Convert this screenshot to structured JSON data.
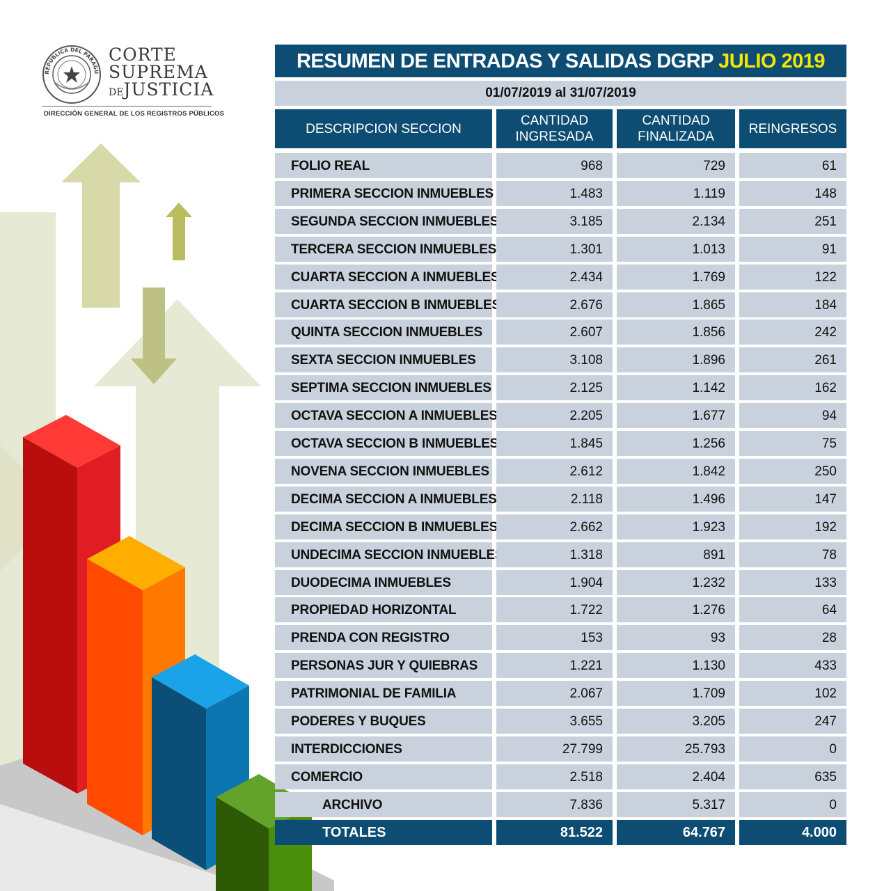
{
  "header": {
    "org_line1": "Corte",
    "org_line2": "Suprema",
    "org_line3_prefix": "de",
    "org_line3": "Justicia",
    "org_subtitle": "DIRECCIÓN GENERAL DE LOS REGISTROS PÚBLICOS",
    "seal_text": "REPÚBLICA DEL PARAGUAY"
  },
  "report": {
    "title": "RESUMEN DE ENTRADAS Y SALIDAS DGRP",
    "title_highlight": "JULIO 2019",
    "date_range": "01/07/2019 al 31/07/2019",
    "columns": {
      "description": "DESCRIPCION SECCION",
      "ingresada_1": "CANTIDAD",
      "ingresada_2": "INGRESADA",
      "finalizada_1": "CANTIDAD",
      "finalizada_2": "FINALIZADA",
      "reingresos": "REINGRESOS"
    },
    "rows": [
      {
        "name": "FOLIO REAL",
        "ingresada": "968",
        "finalizada": "729",
        "reingresos": "61"
      },
      {
        "name": "PRIMERA SECCION INMUEBLES",
        "ingresada": "1.483",
        "finalizada": "1.119",
        "reingresos": "148"
      },
      {
        "name": "SEGUNDA SECCION INMUEBLES",
        "ingresada": "3.185",
        "finalizada": "2.134",
        "reingresos": "251"
      },
      {
        "name": "TERCERA SECCION INMUEBLES",
        "ingresada": "1.301",
        "finalizada": "1.013",
        "reingresos": "91"
      },
      {
        "name": "CUARTA SECCION A INMUEBLES",
        "ingresada": "2.434",
        "finalizada": "1.769",
        "reingresos": "122"
      },
      {
        "name": "CUARTA SECCION B INMUEBLES",
        "ingresada": "2.676",
        "finalizada": "1.865",
        "reingresos": "184"
      },
      {
        "name": "QUINTA SECCION INMUEBLES",
        "ingresada": "2.607",
        "finalizada": "1.856",
        "reingresos": "242"
      },
      {
        "name": "SEXTA SECCION INMUEBLES",
        "ingresada": "3.108",
        "finalizada": "1.896",
        "reingresos": "261"
      },
      {
        "name": "SEPTIMA SECCION INMUEBLES",
        "ingresada": "2.125",
        "finalizada": "1.142",
        "reingresos": "162"
      },
      {
        "name": "OCTAVA SECCION A INMUEBLES",
        "ingresada": "2.205",
        "finalizada": "1.677",
        "reingresos": "94"
      },
      {
        "name": "OCTAVA SECCION B INMUEBLES",
        "ingresada": "1.845",
        "finalizada": "1.256",
        "reingresos": "75"
      },
      {
        "name": "NOVENA SECCION INMUEBLES",
        "ingresada": "2.612",
        "finalizada": "1.842",
        "reingresos": "250"
      },
      {
        "name": "DECIMA SECCION A INMUEBLES",
        "ingresada": "2.118",
        "finalizada": "1.496",
        "reingresos": "147"
      },
      {
        "name": "DECIMA SECCION B INMUEBLES",
        "ingresada": "2.662",
        "finalizada": "1.923",
        "reingresos": "192"
      },
      {
        "name": "UNDECIMA SECCION INMUEBLES",
        "ingresada": "1.318",
        "finalizada": "891",
        "reingresos": "78"
      },
      {
        "name": "DUODECIMA INMUEBLES",
        "ingresada": "1.904",
        "finalizada": "1.232",
        "reingresos": "133"
      },
      {
        "name": "PROPIEDAD HORIZONTAL",
        "ingresada": "1.722",
        "finalizada": "1.276",
        "reingresos": "64"
      },
      {
        "name": "PRENDA CON REGISTRO",
        "ingresada": "153",
        "finalizada": "93",
        "reingresos": "28"
      },
      {
        "name": "PERSONAS JUR Y QUIEBRAS",
        "ingresada": "1.221",
        "finalizada": "1.130",
        "reingresos": "433"
      },
      {
        "name": "PATRIMONIAL DE FAMILIA",
        "ingresada": "2.067",
        "finalizada": "1.709",
        "reingresos": "102"
      },
      {
        "name": "PODERES Y BUQUES",
        "ingresada": "3.655",
        "finalizada": "3.205",
        "reingresos": "247"
      },
      {
        "name": "INTERDICCIONES",
        "ingresada": "27.799",
        "finalizada": "25.793",
        "reingresos": "0"
      },
      {
        "name": "COMERCIO",
        "ingresada": "2.518",
        "finalizada": "2.404",
        "reingresos": "635"
      },
      {
        "name": "ARCHIVO",
        "ingresada": "7.836",
        "finalizada": "5.317",
        "reingresos": "0",
        "indent": true
      }
    ],
    "totals": {
      "name": "TOTALES",
      "ingresada": "81.522",
      "finalizada": "64.767",
      "reingresos": "4.000"
    }
  },
  "colors": {
    "table_header": "#0d4d73",
    "table_row": "#c9d2dc",
    "highlight": "#f7e600",
    "bar_red": "#d91a1e",
    "bar_orange": "#ff6a00",
    "bar_blue": "#0b6fa8",
    "bar_green": "#4c8a0c"
  }
}
